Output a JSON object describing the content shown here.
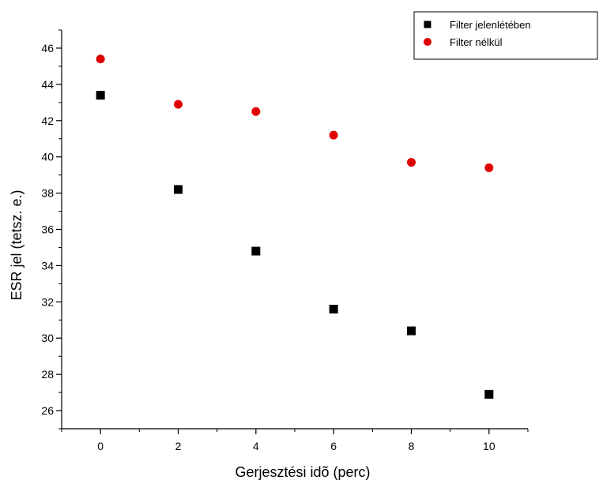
{
  "chart_data": {
    "type": "scatter",
    "title": "",
    "xlabel": "Gerjesztési idõ (perc)",
    "ylabel": "ESR jel (tetsz. e.)",
    "xlim": [
      -1,
      11
    ],
    "ylim": [
      25,
      47
    ],
    "xticks": [
      0,
      2,
      4,
      6,
      8,
      10
    ],
    "yticks": [
      26,
      28,
      30,
      32,
      34,
      36,
      38,
      40,
      42,
      44,
      46
    ],
    "grid": false,
    "legend_position": "top-right",
    "series": [
      {
        "name": "Filter jelenlétében",
        "marker": "square",
        "color": "#000000",
        "x": [
          0,
          2,
          4,
          6,
          8,
          10
        ],
        "y": [
          43.4,
          38.2,
          34.8,
          31.6,
          30.4,
          26.9
        ]
      },
      {
        "name": "Filter nélkül",
        "marker": "circle",
        "color": "#e00000",
        "x": [
          0,
          2,
          4,
          6,
          8,
          10
        ],
        "y": [
          45.4,
          42.9,
          42.5,
          41.2,
          39.7,
          39.4
        ]
      }
    ]
  }
}
